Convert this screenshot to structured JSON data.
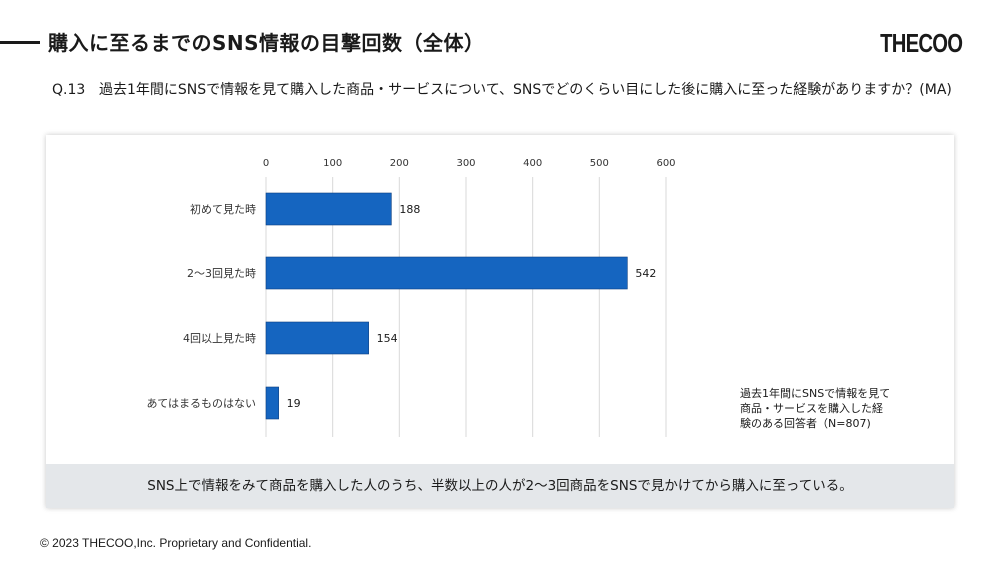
{
  "header": {
    "title": "購入に至るまでのSNS情報の目撃回数（全体）",
    "logo": "THECOO"
  },
  "question": {
    "number": "Q.13",
    "text": "過去1年間にSNSで情報を見て購入した商品・サービスについて、SNSでどのくらい目にした後に購入に至った経験がありますか？(MA)"
  },
  "note": "過去1年間にSNSで情報を見て\n商品・サービスを購入した経\n験のある回答者（N=807)",
  "summary": "SNS上で情報をみて商品を購入した人のうち、半数以上の人が2〜3回商品をSNSで見かけてから購入に至っている。",
  "footer": "© 2023 THECOO,Inc. Proprietary and Confidential.",
  "colors": {
    "bar": "#1565c0",
    "grid": "#d9d9d9"
  },
  "chart_data": {
    "type": "bar",
    "orientation": "horizontal",
    "categories": [
      "初めて見た時",
      "2〜3回見た時",
      "4回以上見た時",
      "あてはまるものはない"
    ],
    "values": [
      188,
      542,
      154,
      19
    ],
    "xlim": [
      0,
      600
    ],
    "xticks": [
      0,
      100,
      200,
      300,
      400,
      500,
      600
    ],
    "grid": true
  }
}
